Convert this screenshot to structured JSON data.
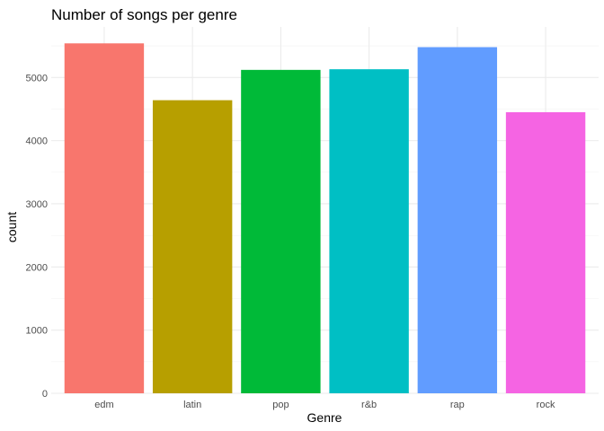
{
  "chart_data": {
    "type": "bar",
    "title": "Number of songs per genre",
    "xlabel": "Genre",
    "ylabel": "count",
    "categories": [
      "edm",
      "latin",
      "pop",
      "r&b",
      "rap",
      "rock"
    ],
    "values": [
      5540,
      4640,
      5120,
      5130,
      5480,
      4450
    ],
    "colors": [
      "#F8766D",
      "#B79F00",
      "#00BA38",
      "#00BFC4",
      "#619CFF",
      "#F564E3"
    ],
    "ylim": [
      0,
      5800
    ],
    "yticks": [
      0,
      1000,
      2000,
      3000,
      4000,
      5000
    ],
    "grid": true,
    "legend": "none"
  }
}
